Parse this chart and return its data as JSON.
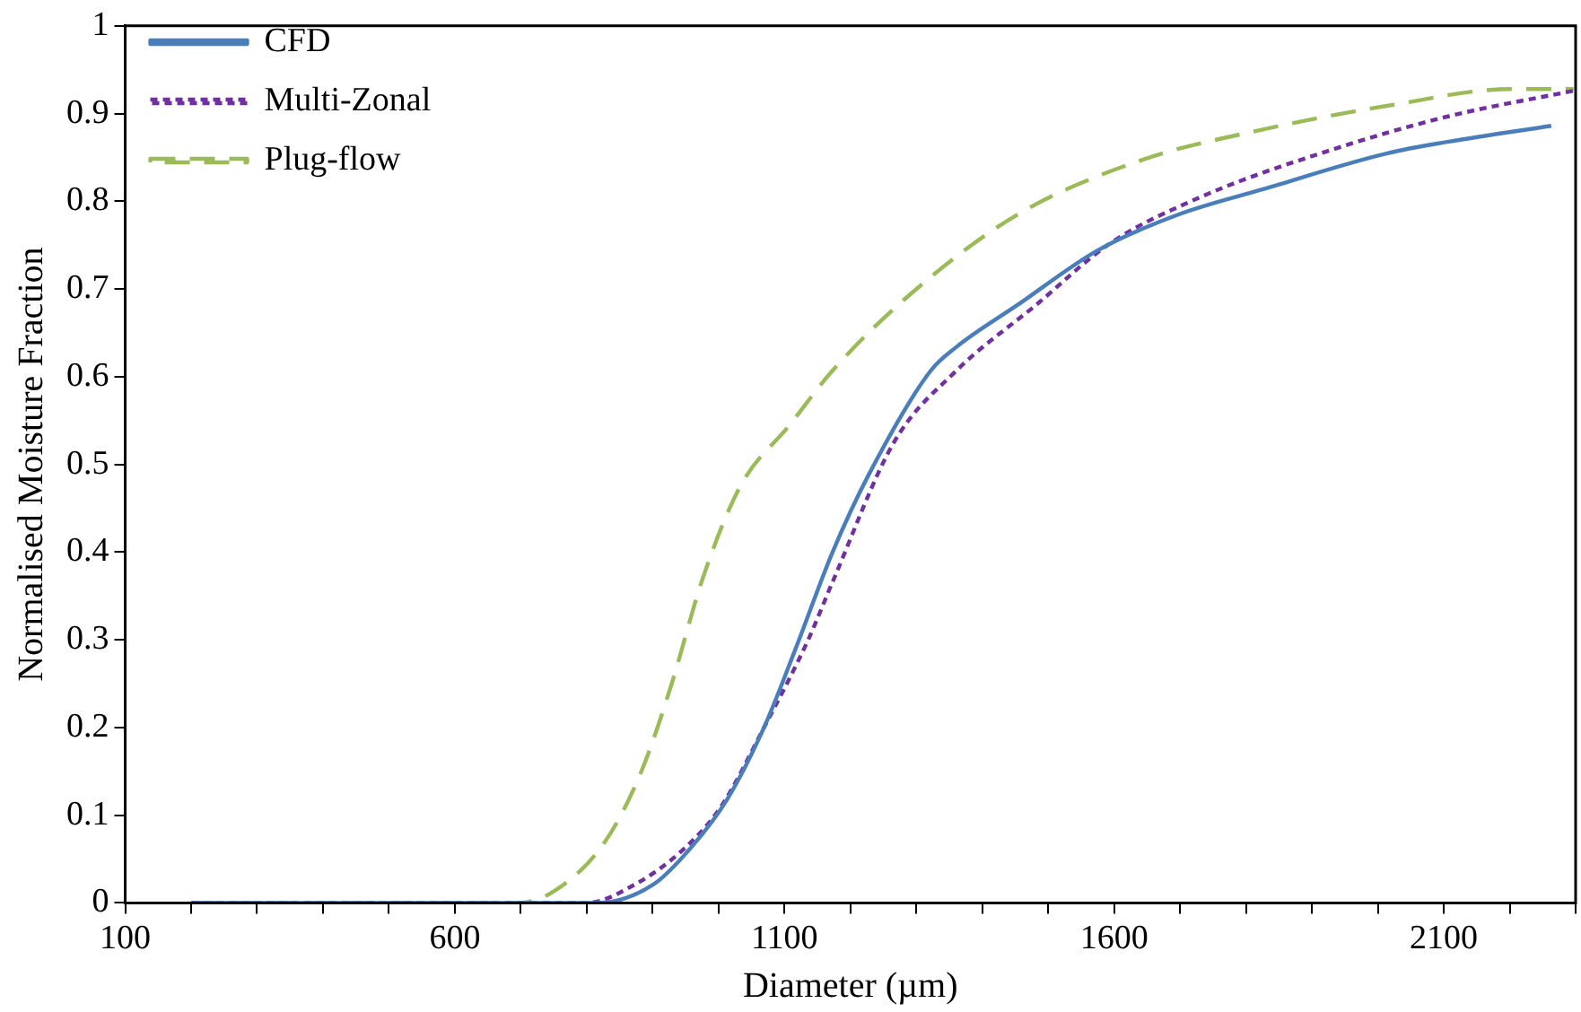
{
  "chart_data": {
    "type": "line",
    "xlabel": "Diameter (µm)",
    "ylabel": "Normalised Moisture Fraction",
    "xlim": [
      100,
      2300
    ],
    "xticks": [
      100,
      {
        "value": 200,
        "label": null
      },
      {
        "value": 300,
        "label": null
      },
      {
        "value": 400,
        "label": null
      },
      {
        "value": 500,
        "label": null
      },
      600,
      {
        "value": 700,
        "label": null
      },
      {
        "value": 800,
        "label": null
      },
      {
        "value": 900,
        "label": null
      },
      {
        "value": 1000,
        "label": null
      },
      1100,
      {
        "value": 1200,
        "label": null
      },
      {
        "value": 1300,
        "label": null
      },
      {
        "value": 1400,
        "label": null
      },
      {
        "value": 1500,
        "label": null
      },
      1600,
      {
        "value": 1700,
        "label": null
      },
      {
        "value": 1800,
        "label": null
      },
      {
        "value": 1900,
        "label": null
      },
      {
        "value": 2000,
        "label": null
      },
      2100,
      {
        "value": 2200,
        "label": null
      },
      {
        "value": 2300,
        "label": null
      }
    ],
    "ylim": [
      0,
      1
    ],
    "yticks": [
      0,
      0.1,
      0.2,
      0.3,
      0.4,
      0.5,
      0.6,
      0.7,
      0.8,
      0.9,
      1
    ],
    "grid": false,
    "legend": "top left",
    "marker": "none",
    "series": [
      {
        "name": "CFD",
        "color": "#4a7ebb",
        "line_style": "solid",
        "x": [
          200,
          500,
          816,
          901,
          957,
          1013,
          1069,
          1117,
          1173,
          1229,
          1322,
          1361,
          1454,
          1575,
          1698,
          1827,
          2016,
          2108,
          2263
        ],
        "values": [
          0,
          0,
          0,
          0.021,
          0.062,
          0.118,
          0.2,
          0.29,
          0.4,
          0.49,
          0.607,
          0.634,
          0.682,
          0.744,
          0.785,
          0.814,
          0.855,
          0.868,
          0.886
        ]
      },
      {
        "name": "Multi-Zonal",
        "color": "#7030a0",
        "line_style": "dotted",
        "x": [
          200,
          500,
          799,
          873,
          948,
          1004,
          1069,
          1136,
          1173,
          1266,
          1361,
          1482,
          1594,
          1735,
          1923,
          2108,
          2297
        ],
        "values": [
          0,
          0,
          0,
          0.021,
          0.062,
          0.11,
          0.2,
          0.3,
          0.366,
          0.525,
          0.607,
          0.682,
          0.752,
          0.806,
          0.857,
          0.897,
          0.926
        ]
      },
      {
        "name": "Plug-flow",
        "color": "#9bbb59",
        "line_style": "dashed",
        "x": [
          200,
          500,
          696,
          752,
          828,
          883,
          929,
          976,
          1033,
          1108,
          1173,
          1294,
          1454,
          1642,
          1827,
          2016,
          2204,
          2297
        ],
        "values": [
          0,
          0,
          0,
          0.014,
          0.07,
          0.15,
          0.25,
          0.37,
          0.475,
          0.545,
          0.607,
          0.696,
          0.785,
          0.847,
          0.882,
          0.909,
          0.928,
          0.928
        ]
      }
    ]
  }
}
